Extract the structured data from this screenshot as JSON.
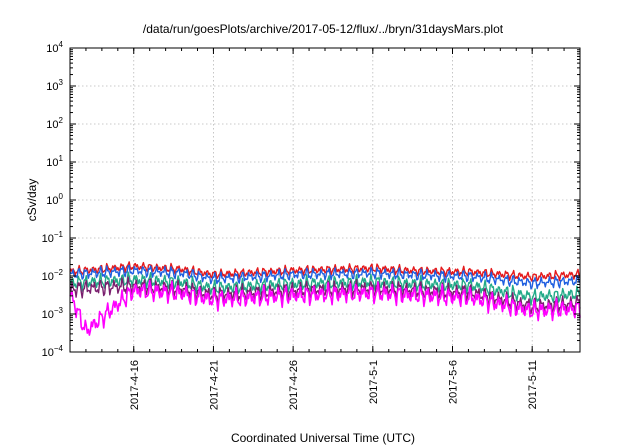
{
  "chart_data": {
    "type": "line",
    "title": "/data/run/goesPlots/archive/2017-05-12/flux/../bryn/31daysMars.plot",
    "xlabel": "Coordinated Universal Time (UTC)",
    "ylabel": "cSv/day",
    "xlim": [
      "2017-04-12",
      "2017-05-14"
    ],
    "ylim": [
      0.0001,
      10000
    ],
    "y_scale": "log",
    "grid": true,
    "legend": "none",
    "x_tick_labels": [
      "2017-4-16",
      "2017-4-21",
      "2017-4-26",
      "2017-5-1",
      "2017-5-6",
      "2017-5-11"
    ],
    "x_tick_dates": [
      "2017-04-16",
      "2017-04-21",
      "2017-04-26",
      "2017-05-01",
      "2017-05-06",
      "2017-05-11"
    ],
    "y_tick_exponents": [
      -4,
      -3,
      -2,
      -1,
      0,
      1,
      2,
      3,
      4
    ],
    "y_tick_base": "10",
    "series": [
      {
        "color": "#e41a1c",
        "x": [
          "2017-04-12",
          "2017-04-16",
          "2017-04-19",
          "2017-04-21",
          "2017-04-26",
          "2017-05-01",
          "2017-05-03",
          "2017-05-06",
          "2017-05-07",
          "2017-05-11",
          "2017-05-14"
        ],
        "values": [
          0.013,
          0.018,
          0.015,
          0.011,
          0.014,
          0.016,
          0.014,
          0.013,
          0.013,
          0.0095,
          0.011
        ]
      },
      {
        "color": "#1f5fe0",
        "x": [
          "2017-04-12",
          "2017-04-16",
          "2017-04-19",
          "2017-04-21",
          "2017-04-26",
          "2017-05-01",
          "2017-05-03",
          "2017-05-06",
          "2017-05-07",
          "2017-05-11",
          "2017-05-14"
        ],
        "values": [
          0.011,
          0.014,
          0.012,
          0.0085,
          0.011,
          0.012,
          0.011,
          0.01,
          0.01,
          0.0065,
          0.0075
        ]
      },
      {
        "color": "#22aa88",
        "x": [
          "2017-04-12",
          "2017-04-16",
          "2017-04-19",
          "2017-04-21",
          "2017-04-26",
          "2017-05-01",
          "2017-05-03",
          "2017-05-06",
          "2017-05-07",
          "2017-05-11",
          "2017-05-14"
        ],
        "values": [
          0.0065,
          0.008,
          0.0068,
          0.0048,
          0.0062,
          0.007,
          0.0063,
          0.0058,
          0.0058,
          0.0028,
          0.0034
        ]
      },
      {
        "color": "#7a1f6e",
        "x": [
          "2017-04-12",
          "2017-04-16",
          "2017-04-19",
          "2017-04-21",
          "2017-04-26",
          "2017-05-01",
          "2017-05-03",
          "2017-05-06",
          "2017-05-07",
          "2017-05-11",
          "2017-05-14"
        ],
        "values": [
          0.0045,
          0.0055,
          0.0046,
          0.0032,
          0.0042,
          0.0048,
          0.0043,
          0.0038,
          0.0038,
          0.0016,
          0.0019
        ]
      },
      {
        "color": "#ff00ff",
        "x": [
          "2017-04-12",
          "2017-04-13",
          "2017-04-16",
          "2017-04-19",
          "2017-04-21",
          "2017-04-26",
          "2017-05-01",
          "2017-05-03",
          "2017-05-06",
          "2017-05-07",
          "2017-05-11",
          "2017-05-14"
        ],
        "values": [
          0.0035,
          0.00035,
          0.0042,
          0.0035,
          0.0024,
          0.0031,
          0.0036,
          0.0032,
          0.0028,
          0.0028,
          0.0012,
          0.0014
        ]
      }
    ]
  }
}
